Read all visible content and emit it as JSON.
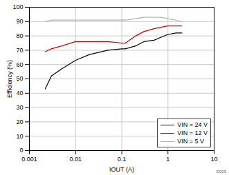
{
  "chart_data": {
    "type": "line",
    "x_label": "IOUT (A)",
    "y_label": "Efficiency (%)",
    "annotations": [
      "D009"
    ],
    "log": "x",
    "grid": true,
    "legend": "bottom-right",
    "xlim": [
      0.001,
      10
    ],
    "xticks": [
      0.001,
      0.01,
      0.1,
      1,
      10
    ],
    "ylim": [
      0,
      100
    ],
    "yticks": [
      0,
      10,
      20,
      30,
      40,
      50,
      60,
      70,
      80,
      90,
      100
    ],
    "x": [
      0.0022,
      0.003,
      0.005,
      0.01,
      0.02,
      0.05,
      0.1,
      0.12,
      0.2,
      0.3,
      0.5,
      0.7,
      1,
      1.5,
      2
    ],
    "series": [
      {
        "name": "VIN = 24 V",
        "color": "#000000",
        "values": [
          43,
          52,
          57,
          63,
          67,
          70,
          71,
          71,
          73,
          76,
          77,
          79,
          81,
          82,
          82
        ]
      },
      {
        "name": "VIN = 12 V",
        "color": "#cc0000",
        "values": [
          69,
          71,
          73,
          76,
          76,
          76,
          75,
          75,
          80,
          83,
          85,
          86,
          87,
          87,
          87
        ]
      },
      {
        "name": "VIN = 5 V",
        "color": "#b0b0b0",
        "values": [
          90,
          91,
          91,
          91,
          91,
          91,
          91,
          91,
          92,
          93,
          93,
          93,
          92,
          91,
          90
        ]
      }
    ]
  }
}
